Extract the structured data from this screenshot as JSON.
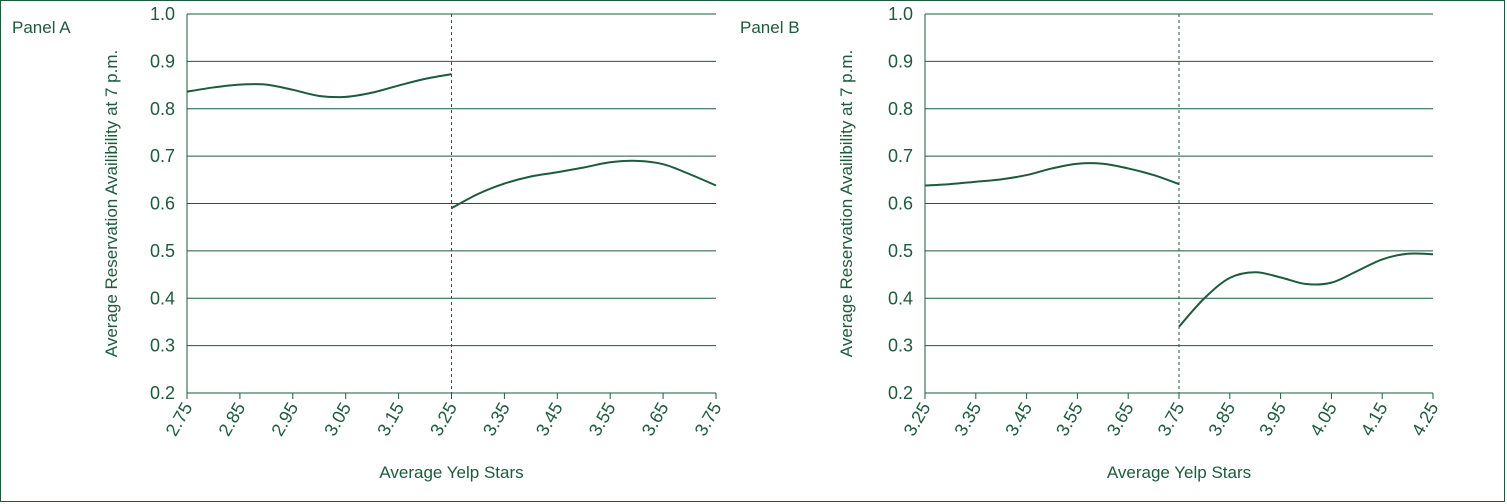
{
  "colors": {
    "ink": "#1e5a3c",
    "background": "#ffffff"
  },
  "chart_data": [
    {
      "type": "line",
      "panel_label": "Panel A",
      "xlabel": "Average Yelp Stars",
      "ylabel": "Average Reservation Availibility at 7 p.m.",
      "xlim": [
        2.75,
        3.75
      ],
      "ylim": [
        0.2,
        1.0
      ],
      "x_ticks": [
        "2.75",
        "2.85",
        "2.95",
        "3.05",
        "3.15",
        "3.25",
        "3.35",
        "3.45",
        "3.55",
        "3.65",
        "3.75"
      ],
      "y_ticks": [
        "1.0",
        "0.9",
        "0.8",
        "0.7",
        "0.6",
        "0.5",
        "0.4",
        "0.3",
        "0.2"
      ],
      "grid": true,
      "cutoff_x": 3.25,
      "series": [
        {
          "x": [
            2.75,
            2.8,
            2.85,
            2.9,
            2.95,
            3.0,
            3.05,
            3.1,
            3.15,
            3.2,
            3.25
          ],
          "y": [
            0.836,
            0.845,
            0.851,
            0.851,
            0.84,
            0.827,
            0.825,
            0.834,
            0.849,
            0.863,
            0.873
          ]
        },
        {
          "x": [
            3.25,
            3.3,
            3.35,
            3.4,
            3.45,
            3.5,
            3.55,
            3.6,
            3.65,
            3.7,
            3.75
          ],
          "y": [
            0.59,
            0.62,
            0.642,
            0.657,
            0.666,
            0.676,
            0.687,
            0.69,
            0.683,
            0.662,
            0.638
          ]
        }
      ]
    },
    {
      "type": "line",
      "panel_label": "Panel B",
      "xlabel": "Average Yelp Stars",
      "ylabel": "Average Reservation Availibility at 7 p.m.",
      "xlim": [
        3.25,
        4.25
      ],
      "ylim": [
        0.2,
        1.0
      ],
      "x_ticks": [
        "3.25",
        "3.35",
        "3.45",
        "3.55",
        "3.65",
        "3.75",
        "3.85",
        "3.95",
        "4.05",
        "4.15",
        "4.25"
      ],
      "y_ticks": [
        "1.0",
        "0.9",
        "0.8",
        "0.7",
        "0.6",
        "0.5",
        "0.4",
        "0.3",
        "0.2"
      ],
      "grid": true,
      "cutoff_x": 3.75,
      "series": [
        {
          "x": [
            3.25,
            3.3,
            3.35,
            3.4,
            3.45,
            3.5,
            3.55,
            3.6,
            3.65,
            3.7,
            3.75
          ],
          "y": [
            0.638,
            0.641,
            0.646,
            0.651,
            0.66,
            0.674,
            0.684,
            0.684,
            0.674,
            0.66,
            0.641
          ]
        },
        {
          "x": [
            3.75,
            3.8,
            3.85,
            3.9,
            3.95,
            4.0,
            4.05,
            4.1,
            4.15,
            4.2,
            4.25
          ],
          "y": [
            0.34,
            0.4,
            0.443,
            0.455,
            0.444,
            0.43,
            0.433,
            0.457,
            0.482,
            0.494,
            0.493
          ]
        }
      ]
    }
  ]
}
